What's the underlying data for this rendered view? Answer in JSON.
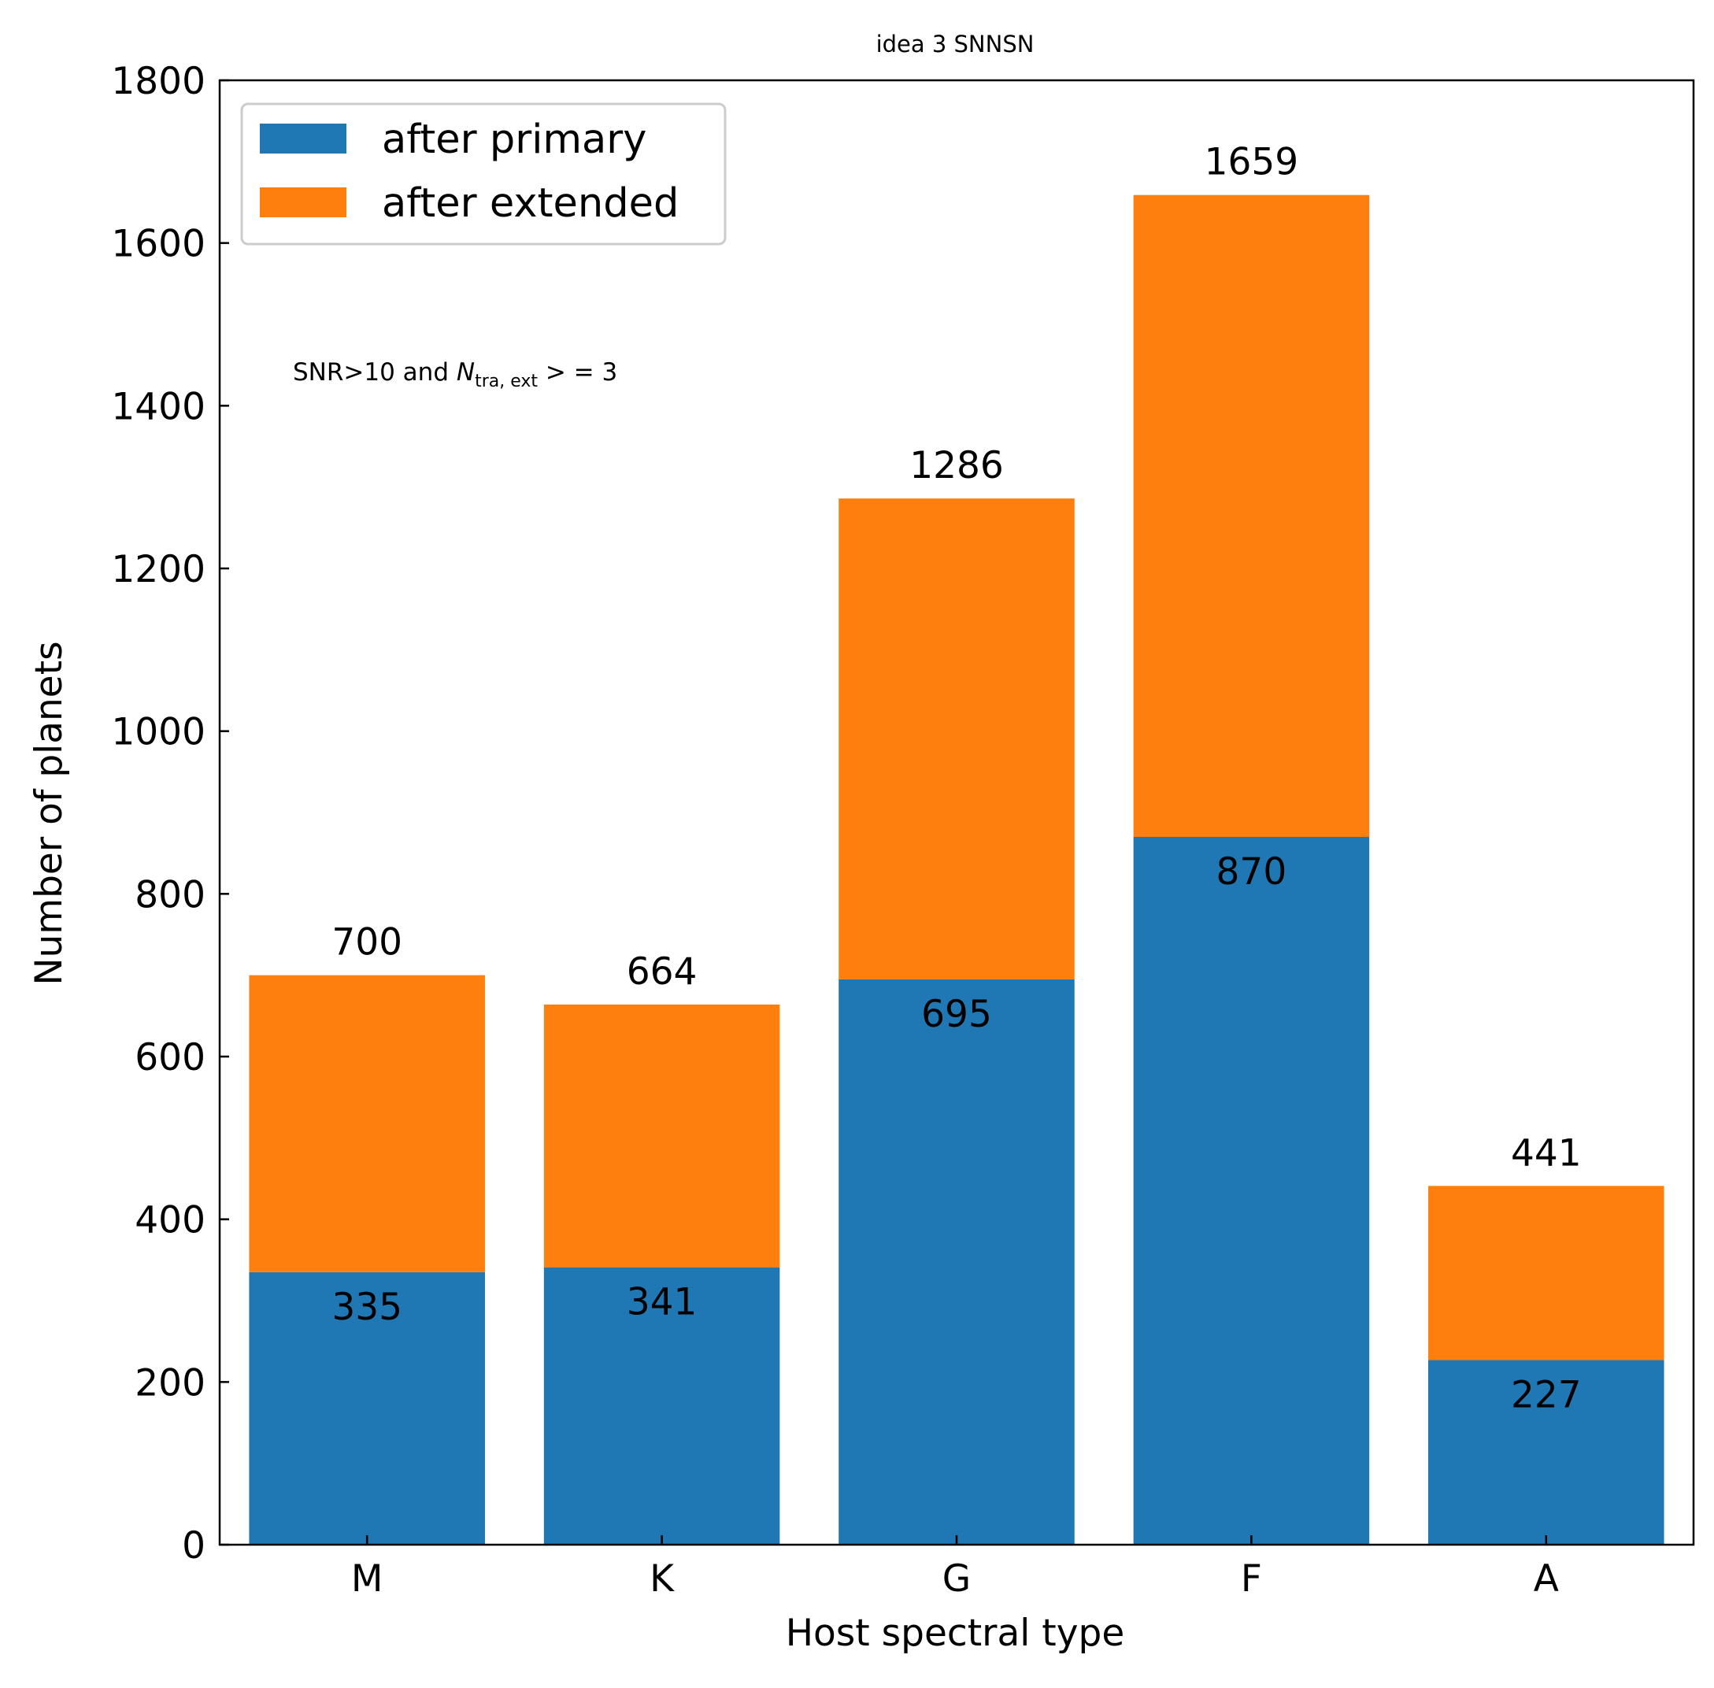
{
  "chart_data": {
    "type": "bar",
    "stacked": true,
    "title": "idea 3 SNNSN",
    "annotation": {
      "prefix": "SNR>10 and ",
      "var": "N",
      "subscript": "tra, ext",
      "suffix": " > = 3"
    },
    "xlabel": "Host spectral type",
    "ylabel": "Number of planets",
    "categories": [
      "M",
      "K",
      "G",
      "F",
      "A"
    ],
    "ylim": [
      0,
      1800
    ],
    "yticks": [
      0,
      200,
      400,
      600,
      800,
      1000,
      1200,
      1400,
      1600,
      1800
    ],
    "series": [
      {
        "name": "after primary",
        "color": "#1f77b4",
        "values": [
          335,
          341,
          695,
          870,
          227
        ]
      },
      {
        "name": "after extended",
        "color": "#ff7f0e",
        "values": [
          365,
          323,
          591,
          789,
          214
        ]
      }
    ],
    "bottom_labels": [
      "335",
      "341",
      "695",
      "870",
      "227"
    ],
    "total_labels": [
      "700",
      "664",
      "1286",
      "1659",
      "441"
    ],
    "legend_position": "upper-left",
    "grid": false
  }
}
